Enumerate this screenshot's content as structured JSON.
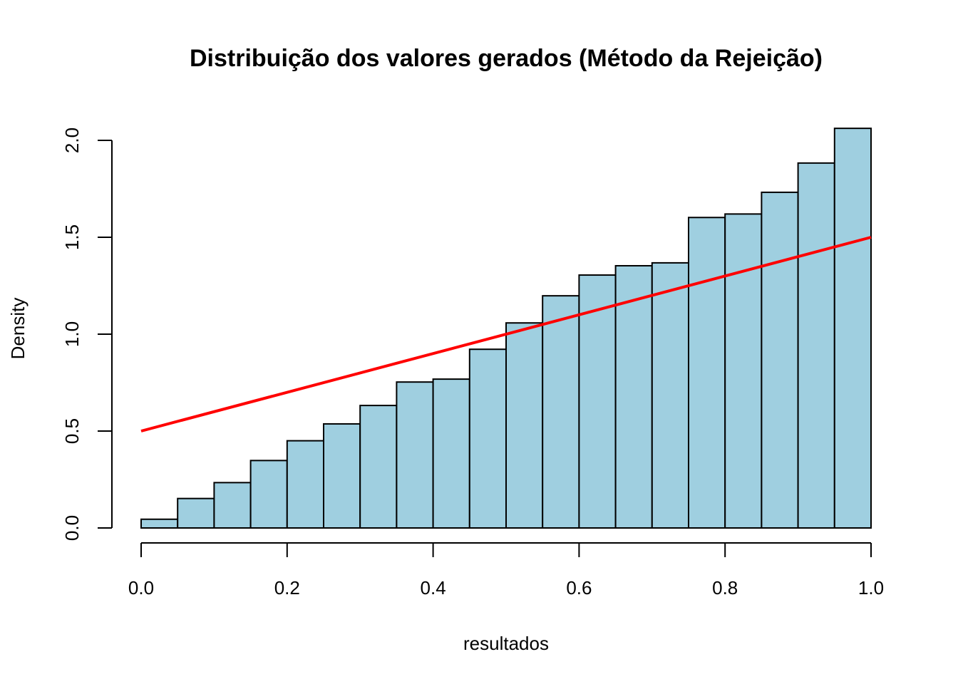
{
  "chart_data": {
    "type": "bar",
    "subtype": "histogram",
    "title": "Distribuição dos valores gerados (Método da Rejeição)",
    "xlabel": "resultados",
    "ylabel": "Density",
    "xlim": [
      0,
      1
    ],
    "ylim": [
      0,
      2.0
    ],
    "x_ticks": [
      "0.0",
      "0.2",
      "0.4",
      "0.6",
      "0.8",
      "1.0"
    ],
    "y_ticks": [
      "0.0",
      "0.5",
      "1.0",
      "1.5",
      "2.0"
    ],
    "bin_width": 0.05,
    "bins": [
      {
        "start": 0.0,
        "end": 0.05,
        "density": 0.045
      },
      {
        "start": 0.05,
        "end": 0.1,
        "density": 0.152
      },
      {
        "start": 0.1,
        "end": 0.15,
        "density": 0.234
      },
      {
        "start": 0.15,
        "end": 0.2,
        "density": 0.348
      },
      {
        "start": 0.2,
        "end": 0.25,
        "density": 0.45
      },
      {
        "start": 0.25,
        "end": 0.3,
        "density": 0.537
      },
      {
        "start": 0.3,
        "end": 0.35,
        "density": 0.632
      },
      {
        "start": 0.35,
        "end": 0.4,
        "density": 0.753
      },
      {
        "start": 0.4,
        "end": 0.45,
        "density": 0.768
      },
      {
        "start": 0.45,
        "end": 0.5,
        "density": 0.922
      },
      {
        "start": 0.5,
        "end": 0.55,
        "density": 1.058
      },
      {
        "start": 0.55,
        "end": 0.6,
        "density": 1.198
      },
      {
        "start": 0.6,
        "end": 0.65,
        "density": 1.305
      },
      {
        "start": 0.65,
        "end": 0.7,
        "density": 1.353
      },
      {
        "start": 0.7,
        "end": 0.75,
        "density": 1.368
      },
      {
        "start": 0.75,
        "end": 0.8,
        "density": 1.602
      },
      {
        "start": 0.8,
        "end": 0.85,
        "density": 1.62
      },
      {
        "start": 0.85,
        "end": 0.9,
        "density": 1.732
      },
      {
        "start": 0.9,
        "end": 0.95,
        "density": 1.883
      },
      {
        "start": 0.95,
        "end": 1.0,
        "density": 2.062
      }
    ],
    "reference_line": {
      "x": [
        0,
        1
      ],
      "y": [
        0.5,
        1.5
      ],
      "color": "#ff0000"
    },
    "bar_fill": "#9fcfe0",
    "bar_stroke": "#000000"
  }
}
